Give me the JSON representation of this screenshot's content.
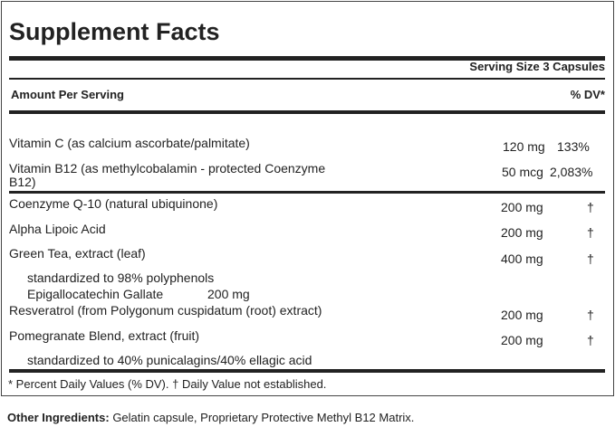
{
  "title": "Supplement Facts",
  "serving_size": "Serving Size 3 Capsules",
  "header": {
    "amount": "Amount Per Serving",
    "dv": "% DV*"
  },
  "rows": [
    {
      "name": "Vitamin C (as calcium ascorbate/palmitate)",
      "amount": "120 mg",
      "dv": "133%"
    },
    {
      "name": "Vitamin B12 (as methylcobalamin - protected Coenzyme",
      "name2": "B12)",
      "amount": "50 mcg",
      "dv": "2,083%"
    },
    {
      "name": "Coenzyme Q-10 (natural ubiquinone)",
      "amount": "200 mg",
      "dv": "†"
    },
    {
      "name": "Alpha Lipoic Acid",
      "amount": "200 mg",
      "dv": "†"
    },
    {
      "name": "Green Tea, extract (leaf)",
      "amount": "400 mg",
      "dv": "†"
    },
    {
      "name": "standardized to 98% polyphenols"
    },
    {
      "name": "Epigallocatechin Gallate",
      "amount": "200 mg"
    },
    {
      "name": "Resveratrol (from Polygonum cuspidatum (root) extract)",
      "amount": "200 mg",
      "dv": "†"
    },
    {
      "name": "Pomegranate Blend, extract (fruit)",
      "amount": "200 mg",
      "dv": "†"
    },
    {
      "name": "standardized to 40% punicalagins/40% ellagic acid"
    }
  ],
  "footnote": "* Percent Daily Values (% DV). † Daily Value not established.",
  "other_ingredients": {
    "label": "Other Ingredients:",
    "text": "Gelatin capsule, Proprietary Protective Methyl B12 Matrix."
  }
}
